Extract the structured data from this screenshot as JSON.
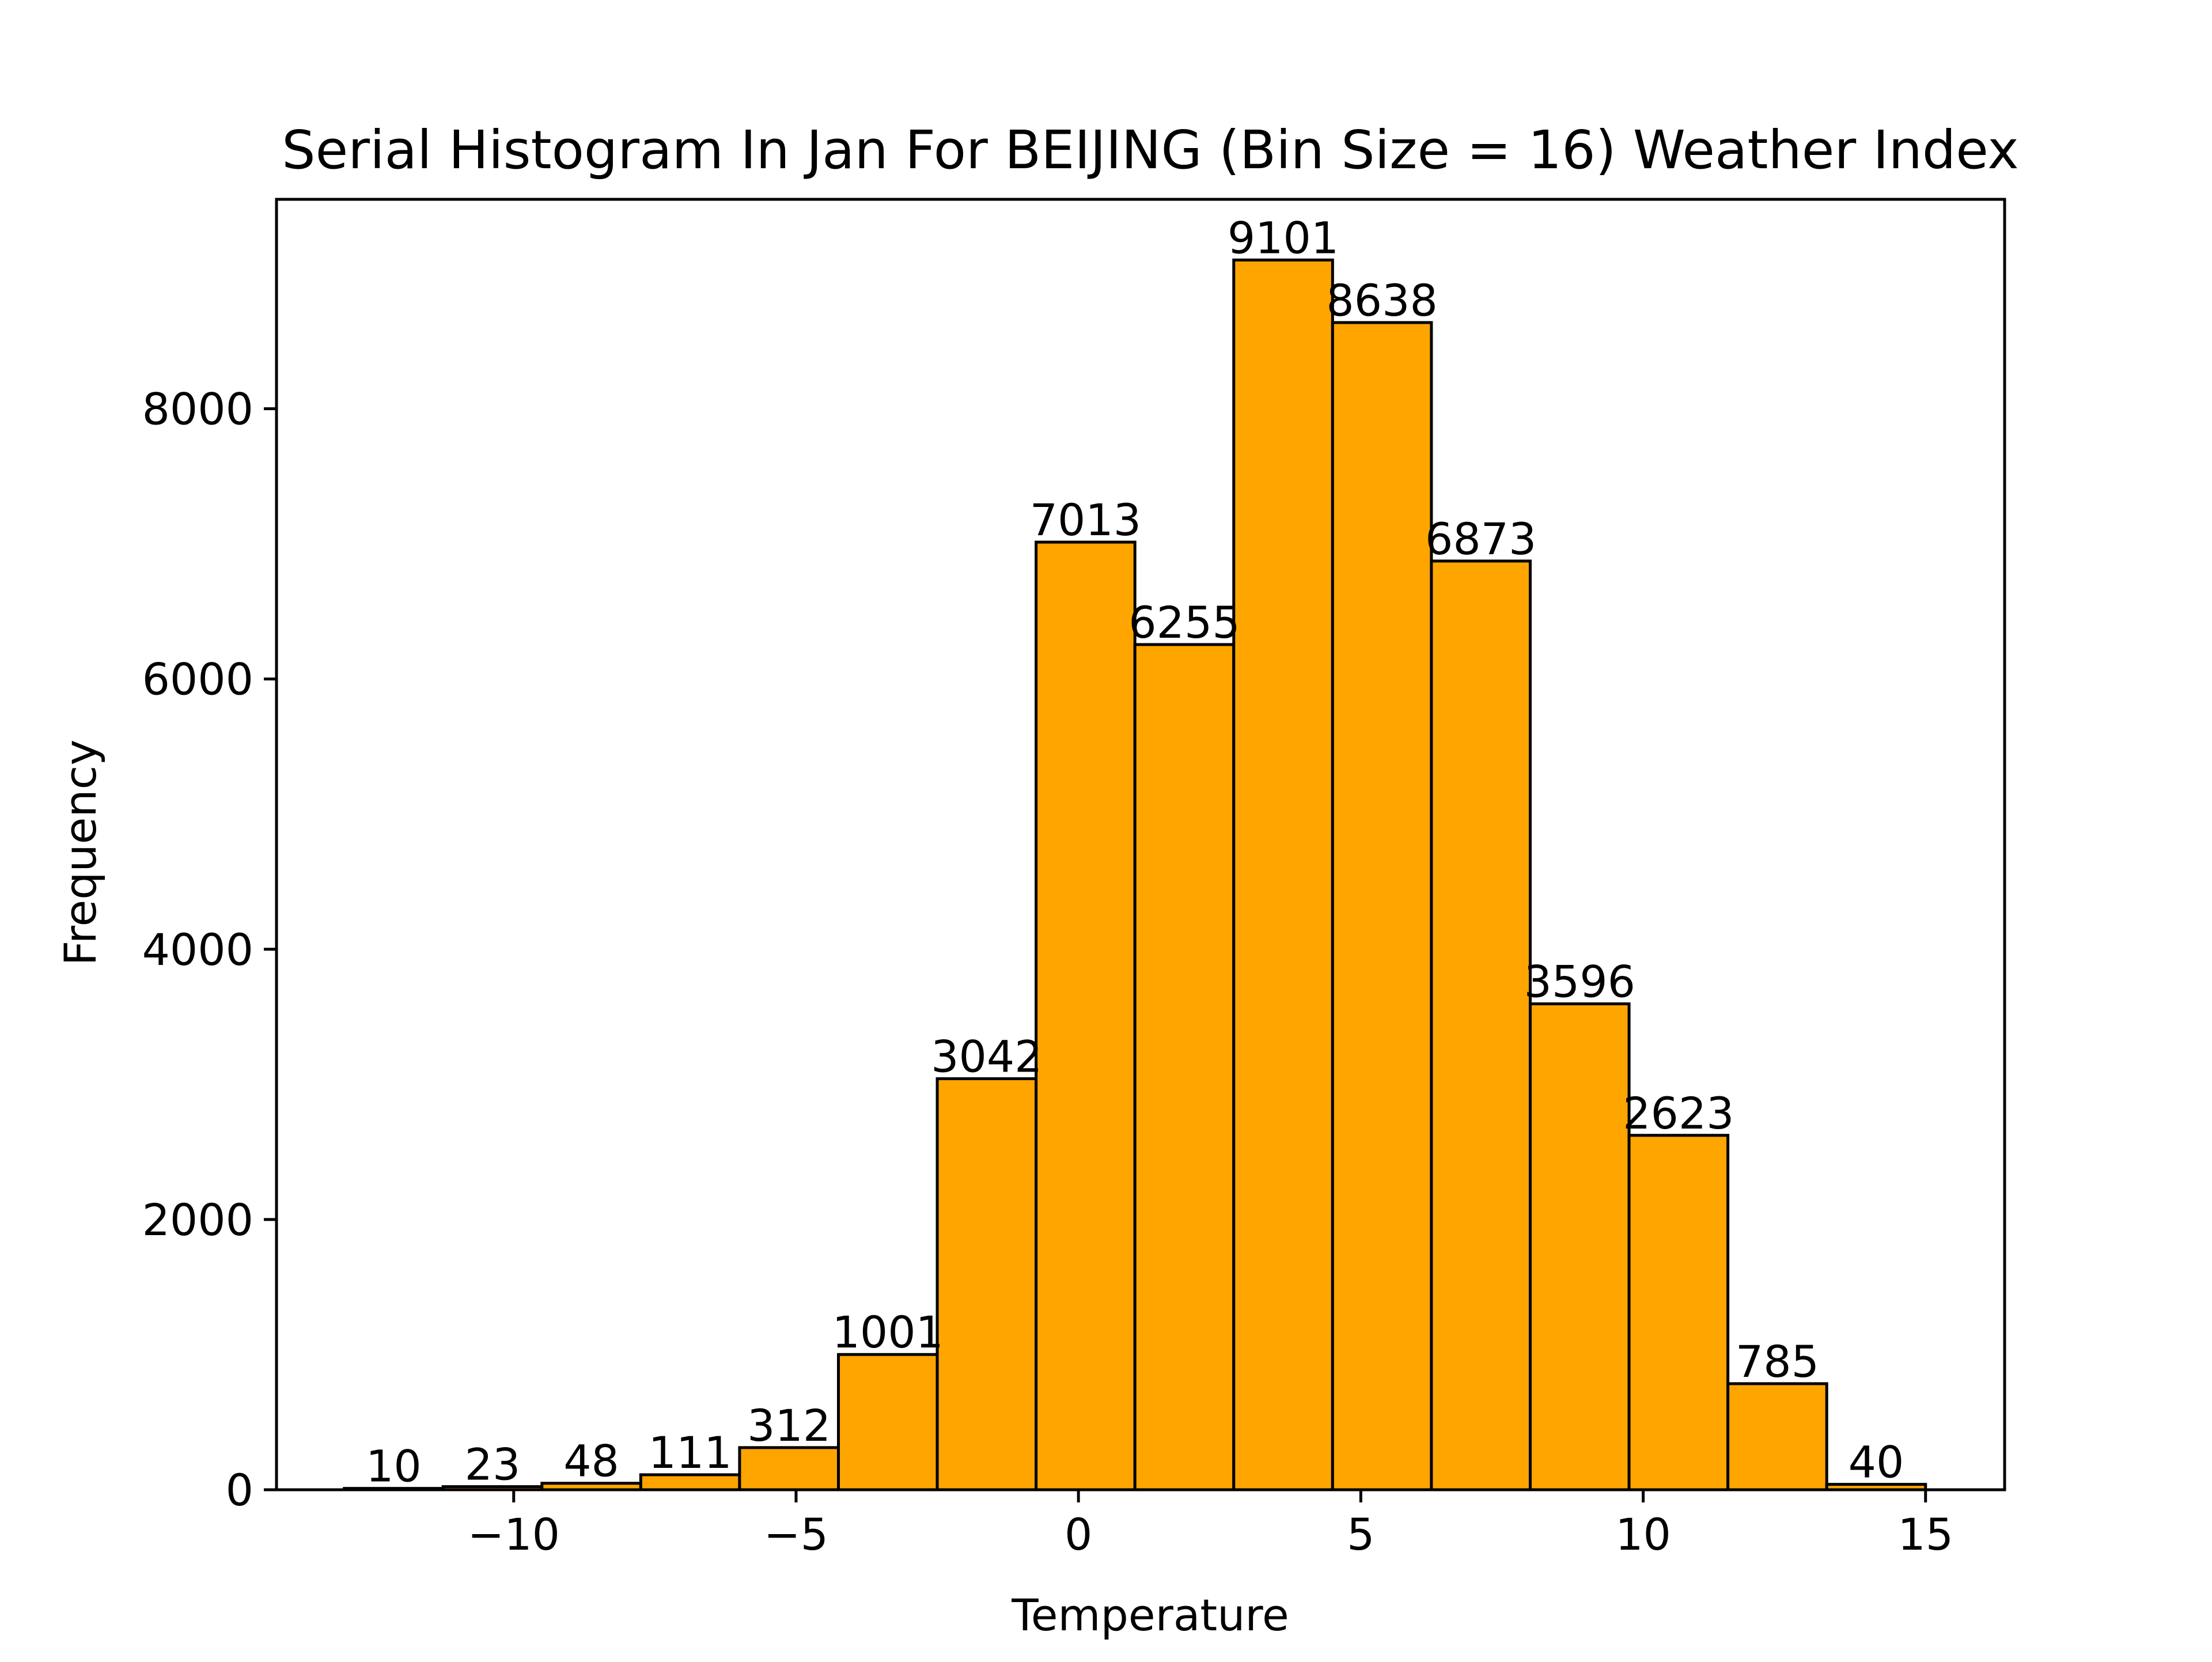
{
  "chart_data": {
    "type": "bar",
    "title": "Serial Histogram In Jan For BEIJING (Bin Size = 16) Weather Index",
    "xlabel": "Temperature",
    "ylabel": "Frequency",
    "bin_edges": [
      -13.0,
      -11.25,
      -9.5,
      -7.75,
      -6.0,
      -4.25,
      -2.5,
      -0.75,
      1.0,
      2.75,
      4.5,
      6.25,
      8.0,
      9.75,
      11.5,
      13.25,
      15.0
    ],
    "values": [
      10,
      23,
      48,
      111,
      312,
      1001,
      3042,
      7013,
      6255,
      9101,
      8638,
      6873,
      3596,
      2623,
      785,
      40
    ],
    "value_labels": [
      "10",
      "23",
      "48",
      "111",
      "312",
      "1001",
      "3042",
      "7013",
      "6255",
      "9101",
      "8638",
      "6873",
      "3596",
      "2623",
      "785",
      "40"
    ],
    "xlim": [
      -14.2,
      16.4
    ],
    "ylim": [
      0,
      9550
    ],
    "x_ticks": [
      -10,
      -5,
      0,
      5,
      10,
      15
    ],
    "x_tick_labels": [
      "−10",
      "−5",
      "0",
      "5",
      "10",
      "15"
    ],
    "y_ticks": [
      0,
      2000,
      4000,
      6000,
      8000
    ],
    "y_tick_labels": [
      "0",
      "2000",
      "4000",
      "6000",
      "8000"
    ],
    "grid": false,
    "legend": "none",
    "bar_color": "#FFA500",
    "edge_color": "#000000"
  }
}
